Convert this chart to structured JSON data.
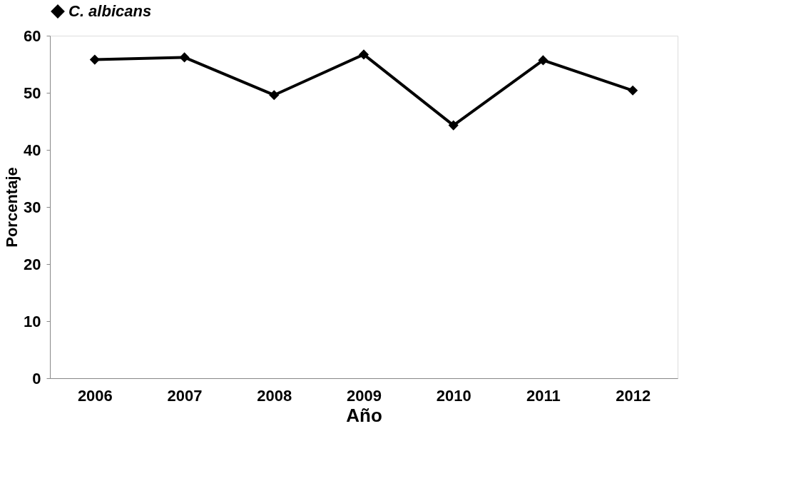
{
  "chart_data": {
    "type": "line",
    "xlabel": "Año",
    "ylabel": "Porcentaje",
    "categories": [
      "2006",
      "2007",
      "2008",
      "2009",
      "2010",
      "2011",
      "2012"
    ],
    "series": [
      {
        "name": "C. albicans",
        "color": "#000000",
        "values": [
          55.8,
          56.2,
          49.6,
          56.7,
          44.3,
          55.7,
          50.4
        ]
      }
    ],
    "ylim": [
      0,
      60
    ],
    "yticks": [
      0,
      10,
      20,
      30,
      40,
      50,
      60
    ],
    "grid": false,
    "legend": "top",
    "marker": "diamond",
    "line_style": "solid"
  }
}
